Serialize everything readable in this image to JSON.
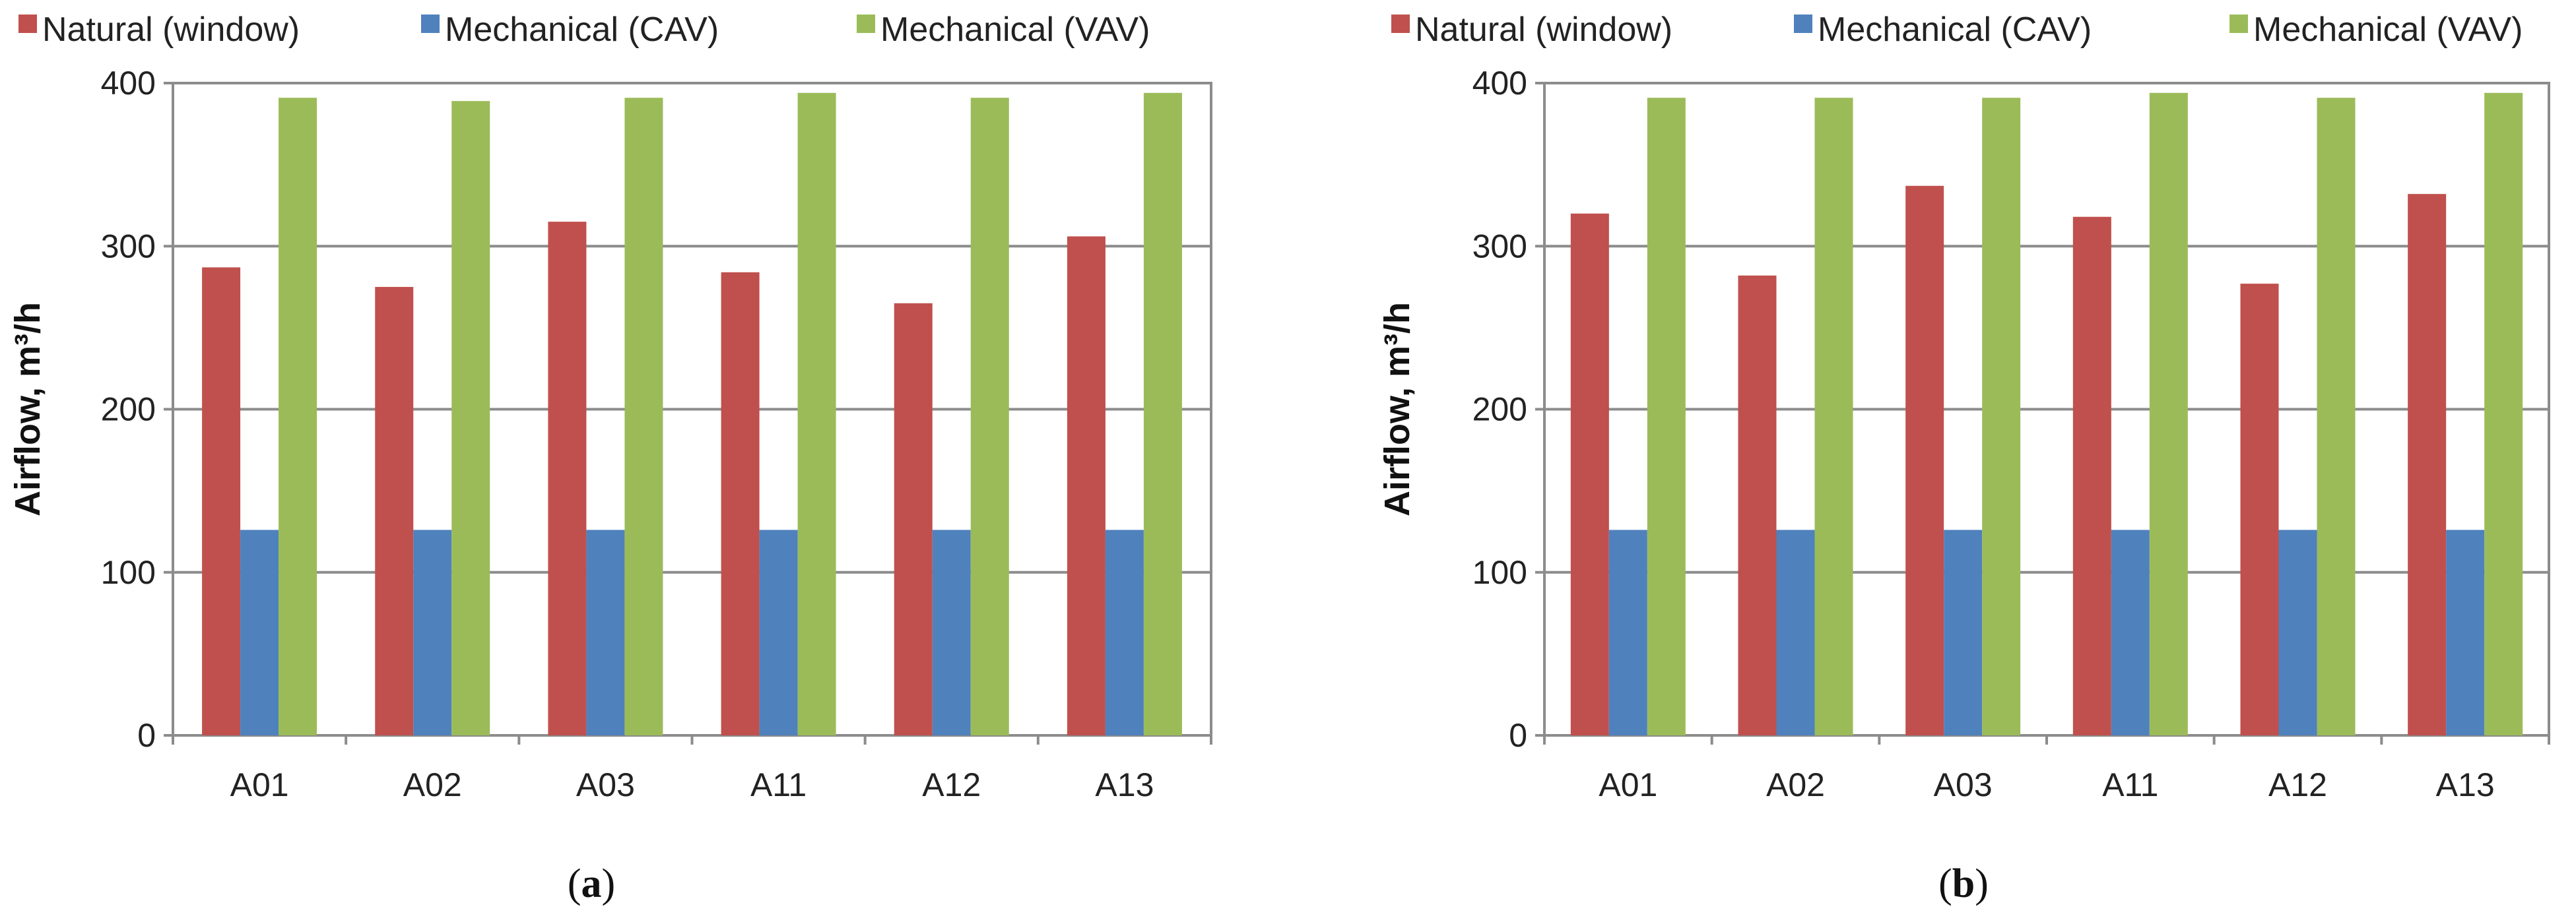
{
  "chart_data": [
    {
      "id": "panel-a",
      "type": "bar",
      "caption": "(a)",
      "caption_open": "(",
      "caption_letter": "a",
      "caption_close": ")",
      "categories": [
        "A01",
        "A02",
        "A03",
        "A11",
        "A12",
        "A13"
      ],
      "series": [
        {
          "name": "Natural (window)",
          "color": "#C0504D",
          "values": [
            287,
            275,
            315,
            284,
            265,
            306
          ]
        },
        {
          "name": "Mechanical (CAV)",
          "color": "#4F81BD",
          "values": [
            126,
            126,
            126,
            126,
            126,
            126
          ]
        },
        {
          "name": "Mechanical (VAV)",
          "color": "#9BBB59",
          "values": [
            391,
            389,
            391,
            394,
            391,
            394
          ]
        }
      ],
      "ylabel": "Airflow, m³/h",
      "ylim": [
        0,
        400
      ],
      "yticks": [
        "0",
        "100",
        "200",
        "300",
        "400"
      ],
      "ytick_values": [
        0,
        100,
        200,
        300,
        400
      ],
      "grid": true,
      "legend_position": "top"
    },
    {
      "id": "panel-b",
      "type": "bar",
      "caption": "(b)",
      "caption_open": "(",
      "caption_letter": "b",
      "caption_close": ")",
      "categories": [
        "A01",
        "A02",
        "A03",
        "A11",
        "A12",
        "A13"
      ],
      "series": [
        {
          "name": "Natural (window)",
          "color": "#C0504D",
          "values": [
            320,
            282,
            337,
            318,
            277,
            332
          ]
        },
        {
          "name": "Mechanical (CAV)",
          "color": "#4F81BD",
          "values": [
            126,
            126,
            126,
            126,
            126,
            126
          ]
        },
        {
          "name": "Mechanical (VAV)",
          "color": "#9BBB59",
          "values": [
            391,
            391,
            391,
            394,
            391,
            394
          ]
        }
      ],
      "ylabel": "Airflow, m³/h",
      "ylim": [
        0,
        400
      ],
      "yticks": [
        "0",
        "100",
        "200",
        "300",
        "400"
      ],
      "ytick_values": [
        0,
        100,
        200,
        300,
        400
      ],
      "grid": true,
      "legend_position": "top"
    }
  ]
}
